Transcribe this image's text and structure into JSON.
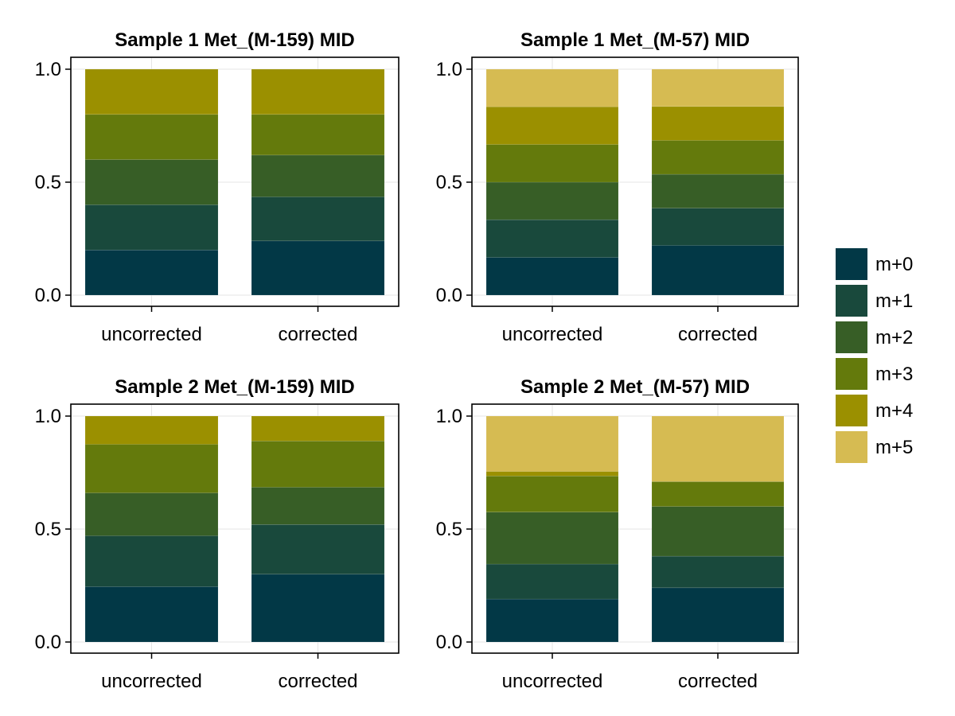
{
  "chart_data": [
    {
      "type": "bar",
      "stacked": true,
      "title": "Sample 1 Met_(M-159) MID",
      "categories": [
        "uncorrected",
        "corrected"
      ],
      "yticks": [
        "0.0",
        "0.5",
        "1.0"
      ],
      "ylim": [
        0,
        1.05
      ],
      "series": [
        {
          "name": "m+0",
          "values": [
            0.2,
            0.24
          ]
        },
        {
          "name": "m+1",
          "values": [
            0.2,
            0.195
          ]
        },
        {
          "name": "m+2",
          "values": [
            0.2,
            0.185
          ]
        },
        {
          "name": "m+3",
          "values": [
            0.2,
            0.18
          ]
        },
        {
          "name": "m+4",
          "values": [
            0.2,
            0.2
          ]
        }
      ]
    },
    {
      "type": "bar",
      "stacked": true,
      "title": "Sample 1 Met_(M-57) MID",
      "categories": [
        "uncorrected",
        "corrected"
      ],
      "yticks": [
        "0.0",
        "0.5",
        "1.0"
      ],
      "ylim": [
        0,
        1.05
      ],
      "series": [
        {
          "name": "m+0",
          "values": [
            0.167,
            0.22
          ]
        },
        {
          "name": "m+1",
          "values": [
            0.167,
            0.165
          ]
        },
        {
          "name": "m+2",
          "values": [
            0.166,
            0.15
          ]
        },
        {
          "name": "m+3",
          "values": [
            0.167,
            0.15
          ]
        },
        {
          "name": "m+4",
          "values": [
            0.167,
            0.15
          ]
        },
        {
          "name": "m+5",
          "values": [
            0.166,
            0.165
          ]
        }
      ]
    },
    {
      "type": "bar",
      "stacked": true,
      "title": "Sample 2 Met_(M-159) MID",
      "categories": [
        "uncorrected",
        "corrected"
      ],
      "yticks": [
        "0.0",
        "0.5",
        "1.0"
      ],
      "ylim": [
        0,
        1.05
      ],
      "series": [
        {
          "name": "m+0",
          "values": [
            0.245,
            0.3
          ]
        },
        {
          "name": "m+1",
          "values": [
            0.225,
            0.22
          ]
        },
        {
          "name": "m+2",
          "values": [
            0.19,
            0.165
          ]
        },
        {
          "name": "m+3",
          "values": [
            0.215,
            0.205
          ]
        },
        {
          "name": "m+4",
          "values": [
            0.125,
            0.11
          ]
        }
      ]
    },
    {
      "type": "bar",
      "stacked": true,
      "title": "Sample 2 Met_(M-57) MID",
      "categories": [
        "uncorrected",
        "corrected"
      ],
      "yticks": [
        "0.0",
        "0.5",
        "1.0"
      ],
      "ylim": [
        0,
        1.05
      ],
      "series": [
        {
          "name": "m+0",
          "values": [
            0.19,
            0.24
          ]
        },
        {
          "name": "m+1",
          "values": [
            0.155,
            0.14
          ]
        },
        {
          "name": "m+2",
          "values": [
            0.23,
            0.22
          ]
        },
        {
          "name": "m+3",
          "values": [
            0.16,
            0.11
          ]
        },
        {
          "name": "m+4",
          "values": [
            0.02,
            0.0
          ]
        },
        {
          "name": "m+5",
          "values": [
            0.245,
            0.29
          ]
        }
      ]
    }
  ],
  "legend": {
    "items": [
      {
        "label": "m+0",
        "color": "#023846"
      },
      {
        "label": "m+1",
        "color": "#19493c"
      },
      {
        "label": "m+2",
        "color": "#375e26"
      },
      {
        "label": "m+3",
        "color": "#647a0c"
      },
      {
        "label": "m+4",
        "color": "#9b9000"
      },
      {
        "label": "m+5",
        "color": "#d6bb52"
      }
    ]
  },
  "colors": {
    "m+0": "#023846",
    "m+1": "#19493c",
    "m+2": "#375e26",
    "m+3": "#647a0c",
    "m+4": "#9b9000",
    "m+5": "#d6bb52",
    "grid": "#e6e6e6",
    "frame": "#000000"
  }
}
